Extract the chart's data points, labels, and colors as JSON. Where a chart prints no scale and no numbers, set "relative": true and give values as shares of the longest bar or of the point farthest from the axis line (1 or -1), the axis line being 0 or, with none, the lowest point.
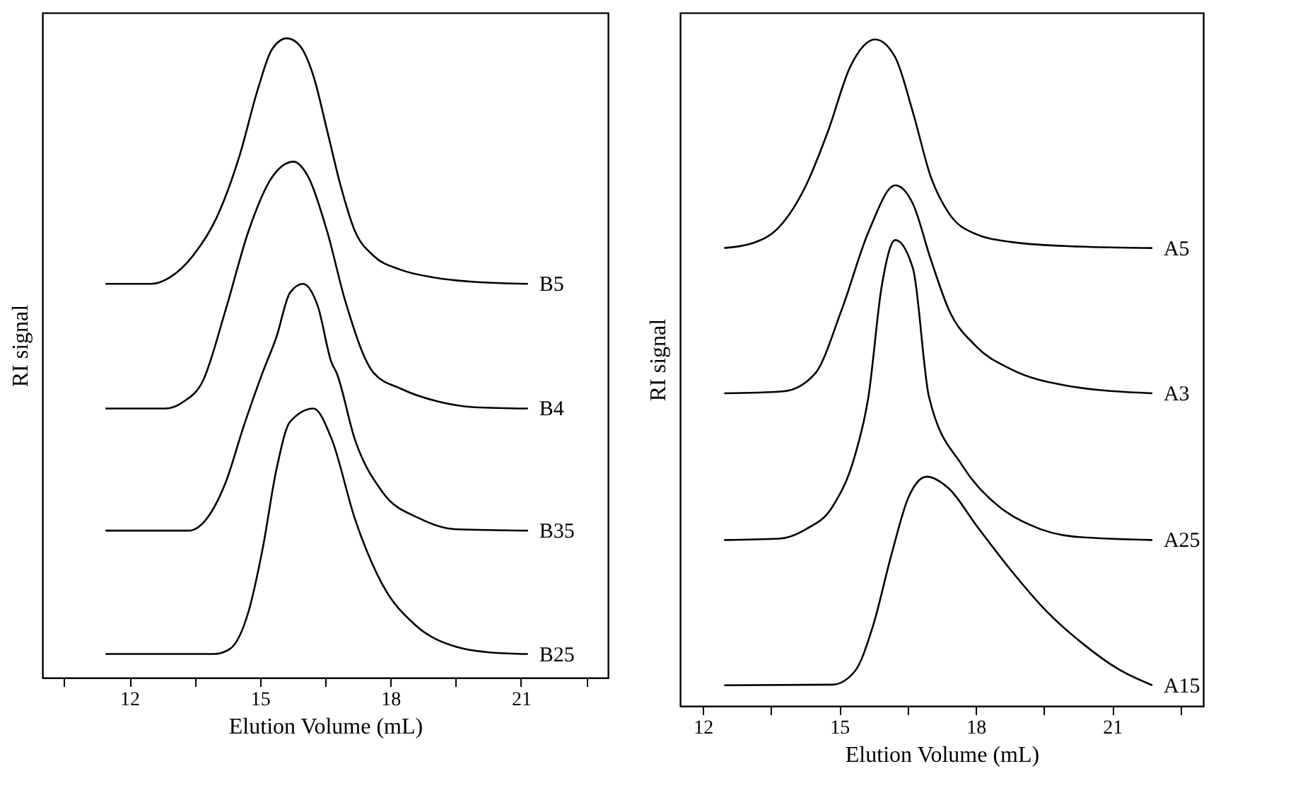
{
  "chart_data": [
    {
      "type": "line",
      "relative": true,
      "xlabel": "Elution Volume (mL)",
      "ylabel": "RI signal",
      "tick_labels": "x",
      "legend": false,
      "xlim": [
        10,
        23
      ],
      "xticks": [
        {
          "value": 10.5,
          "label": null
        },
        12,
        {
          "value": 13.5,
          "label": null
        },
        15,
        {
          "value": 16.5,
          "label": null
        },
        18,
        {
          "value": 19.5,
          "label": null
        },
        21,
        {
          "value": 22.5,
          "label": null
        }
      ],
      "series": [
        {
          "name": "B5",
          "color": "#000000",
          "x": [
            11.45,
            12.51,
            12.93,
            13.46,
            14.0,
            14.53,
            14.95,
            15.27,
            15.62,
            15.91,
            16.23,
            16.54,
            16.86,
            17.18,
            17.61,
            18.24,
            18.99,
            19.94,
            21.16
          ],
          "values": [
            0.616,
            0.616,
            0.626,
            0.66,
            0.719,
            0.816,
            0.92,
            0.982,
            1.0,
            0.989,
            0.941,
            0.857,
            0.768,
            0.699,
            0.66,
            0.638,
            0.626,
            0.619,
            0.616
          ]
        },
        {
          "name": "B4",
          "color": "#000000",
          "x": [
            11.45,
            12.83,
            13.25,
            13.68,
            14.21,
            14.74,
            15.27,
            15.77,
            16.12,
            16.54,
            16.97,
            17.61,
            18.24,
            19.09,
            19.94,
            21.16
          ],
          "values": [
            0.421,
            0.421,
            0.432,
            0.463,
            0.575,
            0.699,
            0.782,
            0.807,
            0.782,
            0.699,
            0.587,
            0.477,
            0.452,
            0.432,
            0.423,
            0.421
          ]
        },
        {
          "name": "B35",
          "color": "#000000",
          "x": [
            11.45,
            13.36,
            13.78,
            14.21,
            14.63,
            15.06,
            15.38,
            15.69,
            15.99,
            16.33,
            16.65,
            16.76,
            17.18,
            17.82,
            18.67,
            19.52,
            21.16
          ],
          "values": [
            0.23,
            0.23,
            0.249,
            0.305,
            0.394,
            0.477,
            0.533,
            0.602,
            0.616,
            0.581,
            0.492,
            0.477,
            0.373,
            0.29,
            0.249,
            0.232,
            0.23
          ]
        },
        {
          "name": "B25",
          "color": "#000000",
          "x": [
            11.45,
            13.94,
            14.31,
            14.74,
            15.06,
            15.38,
            15.69,
            16.23,
            16.65,
            17.18,
            17.82,
            18.56,
            19.52,
            20.37,
            21.16
          ],
          "values": [
            0.037,
            0.037,
            0.045,
            0.104,
            0.201,
            0.326,
            0.4,
            0.421,
            0.373,
            0.249,
            0.145,
            0.083,
            0.048,
            0.039,
            0.037
          ]
        }
      ]
    },
    {
      "type": "line",
      "relative": true,
      "xlabel": "Elution Volume (mL)",
      "ylabel": "RI signal",
      "tick_labels": "x",
      "legend": false,
      "xlim": [
        11.5,
        23
      ],
      "xticks": [
        12,
        {
          "value": 13.5,
          "label": null
        },
        15,
        {
          "value": 16.5,
          "label": null
        },
        18,
        {
          "value": 19.5,
          "label": null
        },
        21,
        {
          "value": 22.5,
          "label": null
        }
      ],
      "series": [
        {
          "name": "A5",
          "color": "#000000",
          "x": [
            12.47,
            13.08,
            13.67,
            14.26,
            14.75,
            15.24,
            15.79,
            16.23,
            16.62,
            17.01,
            17.41,
            18.0,
            18.78,
            19.96,
            21.88
          ],
          "values": [
            0.687,
            0.694,
            0.718,
            0.78,
            0.862,
            0.959,
            1.0,
            0.973,
            0.89,
            0.794,
            0.739,
            0.708,
            0.696,
            0.69,
            0.687
          ]
        },
        {
          "name": "A3",
          "color": "#000000",
          "x": [
            12.47,
            13.77,
            14.46,
            15.05,
            15.64,
            16.23,
            16.62,
            17.01,
            17.41,
            18.0,
            18.78,
            19.96,
            21.88
          ],
          "values": [
            0.469,
            0.472,
            0.498,
            0.594,
            0.711,
            0.781,
            0.753,
            0.67,
            0.594,
            0.54,
            0.505,
            0.481,
            0.469
          ]
        },
        {
          "name": "A25",
          "color": "#000000",
          "x": [
            12.47,
            13.67,
            14.26,
            14.85,
            15.34,
            15.64,
            15.93,
            16.23,
            16.62,
            16.97,
            17.7,
            18.39,
            19.18,
            20.16,
            21.88
          ],
          "values": [
            0.249,
            0.251,
            0.265,
            0.299,
            0.375,
            0.464,
            0.629,
            0.699,
            0.656,
            0.464,
            0.361,
            0.306,
            0.272,
            0.254,
            0.249
          ]
        },
        {
          "name": "A15",
          "color": "#000000",
          "x": [
            12.47,
            14.85,
            15.34,
            15.74,
            16.13,
            16.52,
            16.92,
            17.41,
            18.0,
            18.78,
            19.57,
            20.36,
            21.14,
            21.88
          ],
          "values": [
            0.031,
            0.032,
            0.052,
            0.12,
            0.223,
            0.313,
            0.344,
            0.326,
            0.272,
            0.203,
            0.141,
            0.093,
            0.055,
            0.031
          ]
        }
      ]
    }
  ]
}
